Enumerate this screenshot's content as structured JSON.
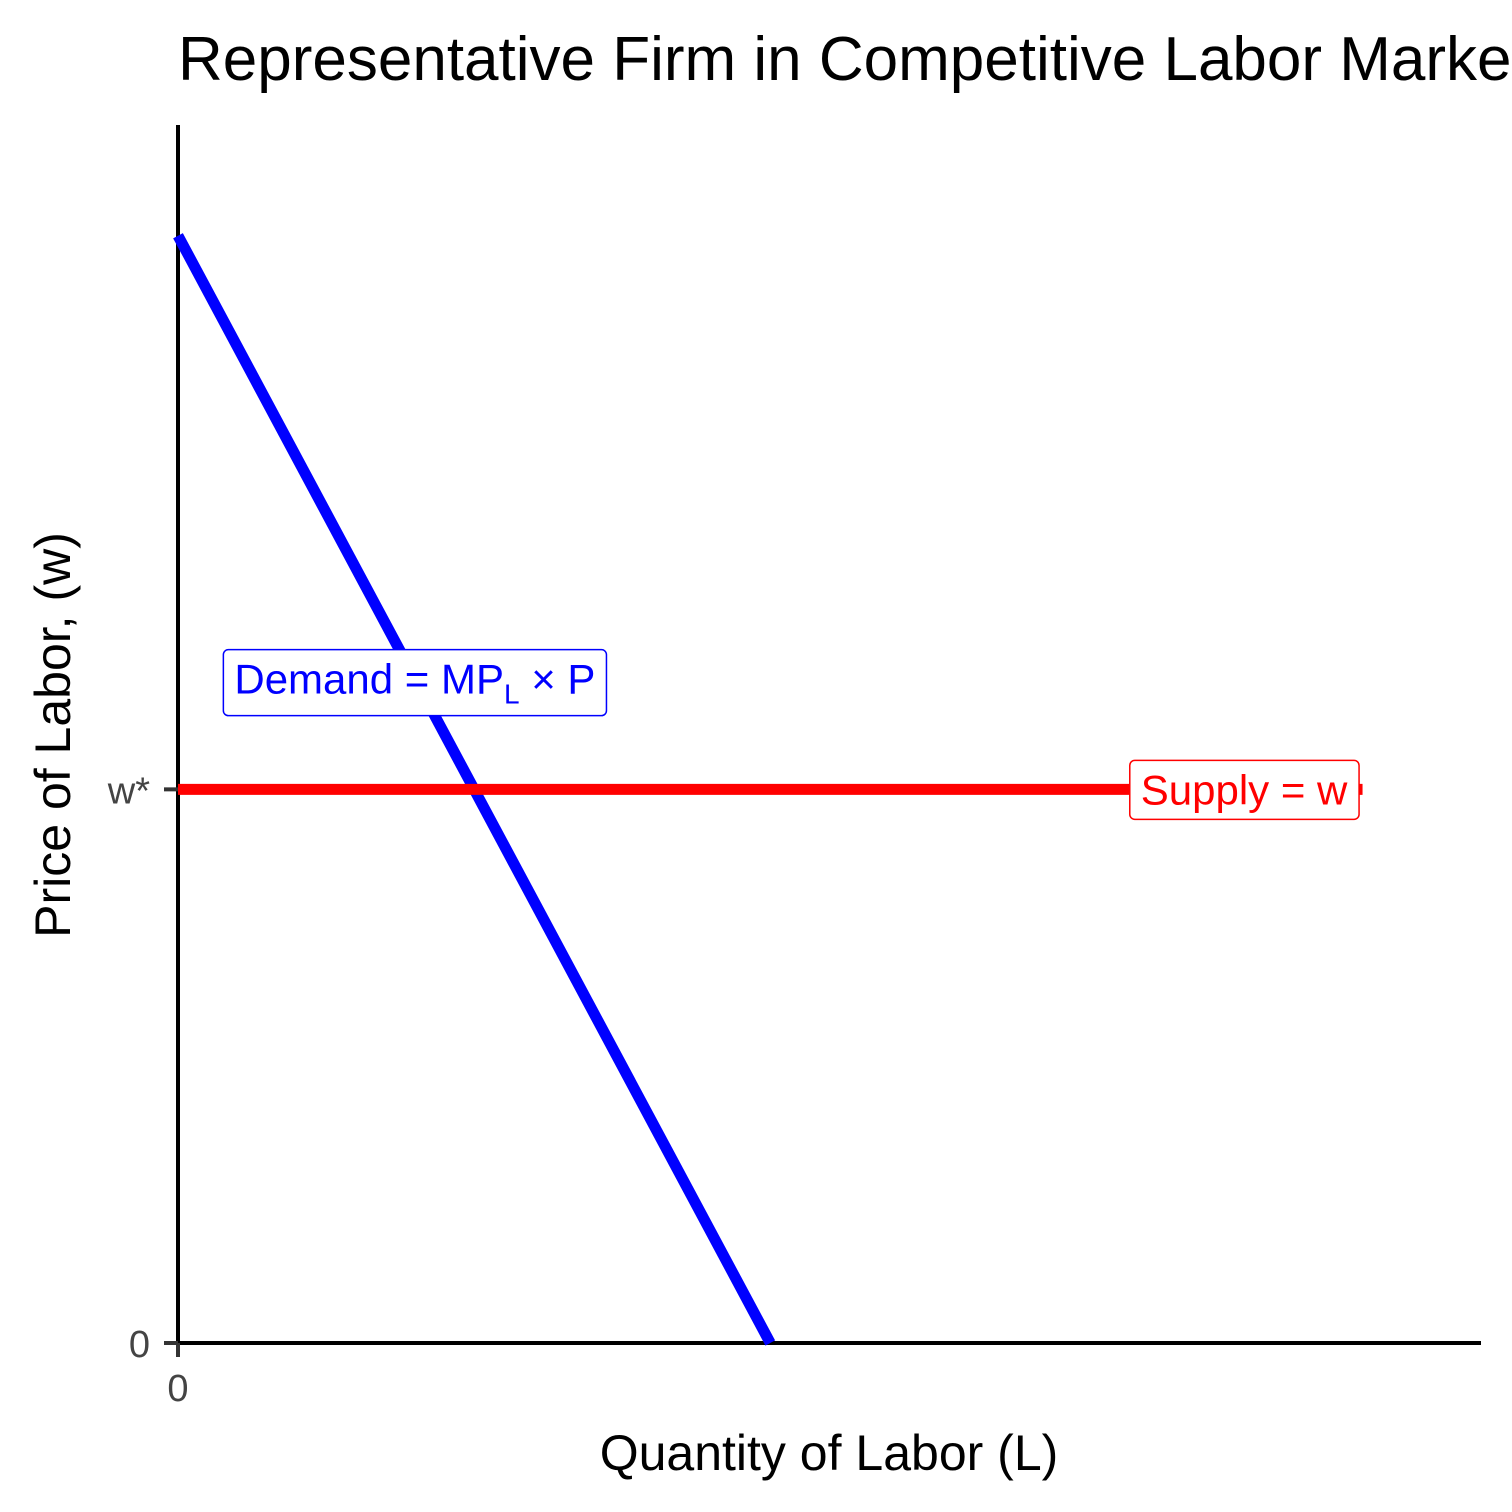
{
  "chart_data": {
    "type": "line",
    "title": "Representative Firm in Competitive Labor Market",
    "xlabel": "Quantity of Labor (L)",
    "ylabel": "Price of Labor, (w)",
    "xlim": [
      0,
      11
    ],
    "ylim": [
      0,
      11
    ],
    "x_ticks": [
      {
        "value": 0,
        "label": "0"
      }
    ],
    "y_ticks": [
      {
        "value": 0,
        "label": "0"
      },
      {
        "value": 5,
        "label": "w*"
      }
    ],
    "grid": false,
    "series": [
      {
        "role": "demand",
        "color": "#0000ff",
        "points": [
          [
            0,
            10
          ],
          [
            5,
            0
          ]
        ]
      },
      {
        "role": "supply",
        "color": "#ff0000",
        "points": [
          [
            0,
            5
          ],
          [
            10,
            5
          ]
        ]
      }
    ],
    "annotations": [
      {
        "role": "demand",
        "x": 2,
        "y": 6,
        "color": "#0000ff",
        "text_main": "Demand = MP",
        "text_sub": "L",
        "text_tail": " × P"
      },
      {
        "role": "supply",
        "x": 9,
        "y": 5,
        "color": "#ff0000",
        "text_main": "Supply = w",
        "text_sub": "",
        "text_tail": ""
      }
    ]
  }
}
